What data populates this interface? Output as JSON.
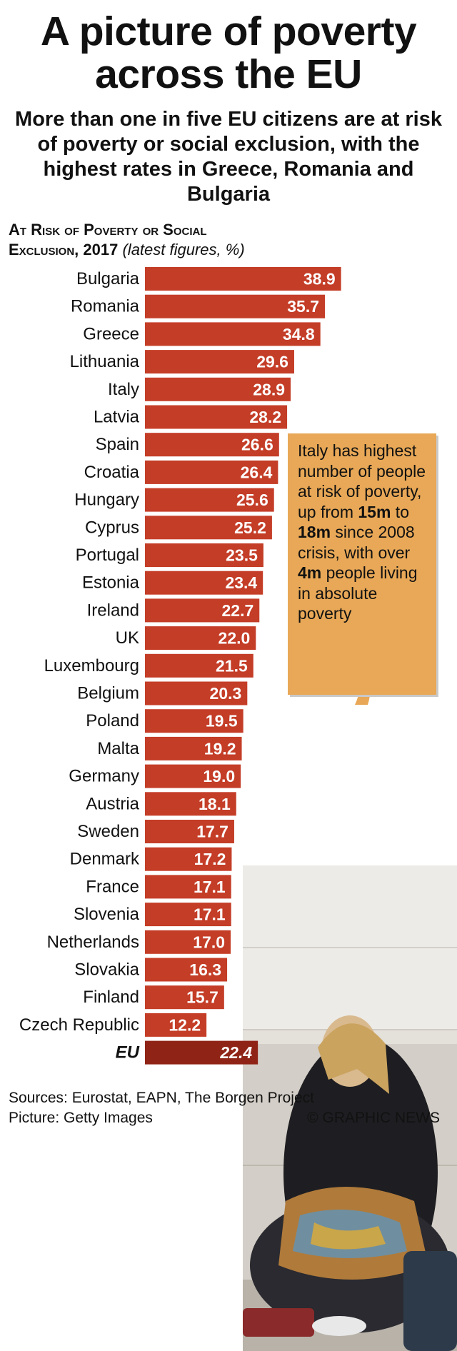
{
  "title": "A picture of poverty across the EU",
  "subtitle": "More than one in five EU citizens are at risk of poverty or social exclusion, with the highest rates in Greece, Romania and Bulgaria",
  "chart_heading": {
    "line1": "At Risk of Poverty or Social",
    "line2": "Exclusion, 2017",
    "unit_note": "(latest figures, %)"
  },
  "colors": {
    "bar": "#c43d27",
    "eu_bar": "#8f2416",
    "callout": "#e8a857"
  },
  "chart_data": {
    "type": "bar",
    "orientation": "horizontal",
    "title": "At Risk of Poverty or Social Exclusion, 2017",
    "unit": "%",
    "categories": [
      "Bulgaria",
      "Romania",
      "Greece",
      "Lithuania",
      "Italy",
      "Latvia",
      "Spain",
      "Croatia",
      "Hungary",
      "Cyprus",
      "Portugal",
      "Estonia",
      "Ireland",
      "UK",
      "Luxembourg",
      "Belgium",
      "Poland",
      "Malta",
      "Germany",
      "Austria",
      "Sweden",
      "Denmark",
      "France",
      "Slovenia",
      "Netherlands",
      "Slovakia",
      "Finland",
      "Czech Republic",
      "EU"
    ],
    "values": [
      38.9,
      35.7,
      34.8,
      29.6,
      28.9,
      28.2,
      26.6,
      26.4,
      25.6,
      25.2,
      23.5,
      23.4,
      22.7,
      22.0,
      21.5,
      20.3,
      19.5,
      19.2,
      19.0,
      18.1,
      17.7,
      17.2,
      17.1,
      17.1,
      17.0,
      16.3,
      15.7,
      12.2,
      22.4
    ],
    "value_labels": [
      "38.9",
      "35.7",
      "34.8",
      "29.6",
      "28.9",
      "28.2",
      "26.6",
      "26.4",
      "25.6",
      "25.2",
      "23.5",
      "23.4",
      "22.7",
      "22.0",
      "21.5",
      "20.3",
      "19.5",
      "19.2",
      "19.0",
      "18.1",
      "17.7",
      "17.2",
      "17.1",
      "17.1",
      "17.0",
      "16.3",
      "15.7",
      "12.2",
      "22.4"
    ],
    "highlight_category": "EU",
    "xlim": [
      0,
      40
    ]
  },
  "callout": {
    "t1": "Italy has highest number of people at risk of poverty, up from ",
    "b1": "15m",
    "t2": " to ",
    "b2": "18m",
    "t3": " since 2008 crisis, with over ",
    "b3": "4m",
    "t4": " people living in absolute poverty"
  },
  "footer": {
    "sources": "Sources: Eurostat, EAPN, The Borgen Project",
    "credit": "Picture: Getty Images",
    "copyright": "© GRAPHIC NEWS"
  }
}
